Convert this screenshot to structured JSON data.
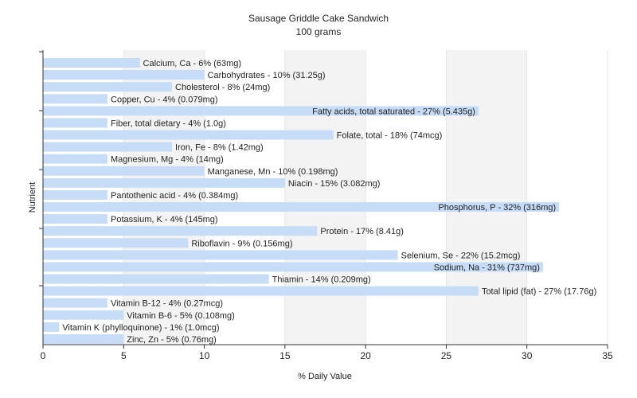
{
  "colors": {
    "background": "#ffffff",
    "plot_background_band": "#f3f3f3",
    "bar": "#c6dcf7",
    "gridline": "#ffffff",
    "axis": "#333333",
    "text": "#222222"
  },
  "chart_data": {
    "type": "bar",
    "orientation": "horizontal",
    "title": "Sausage Griddle Cake Sandwich",
    "subtitle": "100 grams",
    "xlabel": "% Daily Value",
    "ylabel": "Nutrient",
    "xlim": [
      0,
      35
    ],
    "xticks": [
      0,
      5,
      10,
      15,
      20,
      25,
      30,
      35
    ],
    "grid": true,
    "bars": [
      {
        "label": "Calcium, Ca - 6% (63mg)",
        "value": 6
      },
      {
        "label": "Carbohydrates - 10% (31.25g)",
        "value": 10
      },
      {
        "label": "Cholesterol - 8% (24mg)",
        "value": 8
      },
      {
        "label": "Copper, Cu - 4% (0.079mg)",
        "value": 4
      },
      {
        "label": "Fatty acids, total saturated - 27% (5.435g)",
        "value": 27
      },
      {
        "label": "Fiber, total dietary - 4% (1.0g)",
        "value": 4
      },
      {
        "label": "Folate, total - 18% (74mcg)",
        "value": 18
      },
      {
        "label": "Iron, Fe - 8% (1.42mg)",
        "value": 8
      },
      {
        "label": "Magnesium, Mg - 4% (14mg)",
        "value": 4
      },
      {
        "label": "Manganese, Mn - 10% (0.198mg)",
        "value": 10
      },
      {
        "label": "Niacin - 15% (3.082mg)",
        "value": 15
      },
      {
        "label": "Pantothenic acid - 4% (0.384mg)",
        "value": 4
      },
      {
        "label": "Phosphorus, P - 32% (316mg)",
        "value": 32
      },
      {
        "label": "Potassium, K - 4% (145mg)",
        "value": 4
      },
      {
        "label": "Protein - 17% (8.41g)",
        "value": 17
      },
      {
        "label": "Riboflavin - 9% (0.156mg)",
        "value": 9
      },
      {
        "label": "Selenium, Se - 22% (15.2mcg)",
        "value": 22
      },
      {
        "label": "Sodium, Na - 31% (737mg)",
        "value": 31
      },
      {
        "label": "Thiamin - 14% (0.209mg)",
        "value": 14
      },
      {
        "label": "Total lipid (fat) - 27% (17.76g)",
        "value": 27
      },
      {
        "label": "Vitamin B-12 - 4% (0.27mcg)",
        "value": 4
      },
      {
        "label": "Vitamin B-6 - 5% (0.108mg)",
        "value": 5
      },
      {
        "label": "Vitamin K (phylloquinone) - 1% (1.0mcg)",
        "value": 1
      },
      {
        "label": "Zinc, Zn - 5% (0.76mg)",
        "value": 5
      }
    ]
  }
}
